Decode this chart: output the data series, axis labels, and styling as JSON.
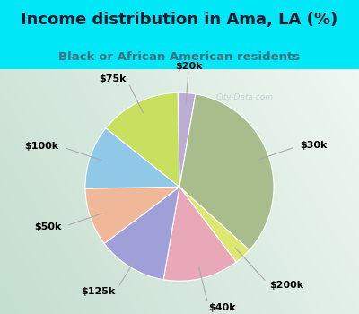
{
  "title": "Income distribution in Ama, LA (%)",
  "subtitle": "Black or African American residents",
  "labels": [
    "$20k",
    "$30k",
    "$200k",
    "$40k",
    "$125k",
    "$50k",
    "$100k",
    "$75k"
  ],
  "sizes": [
    3.0,
    34.0,
    3.0,
    13.0,
    12.0,
    10.0,
    11.0,
    14.0
  ],
  "colors": [
    "#bbadd4",
    "#a8bc8c",
    "#dde870",
    "#e8a8b8",
    "#a0a0d8",
    "#f0b898",
    "#90c8e8",
    "#c8e060"
  ],
  "bg_cyan": "#00e8f8",
  "bg_chart_light": "#e8f5f0",
  "title_color": "#1a1a2e",
  "subtitle_color": "#407080",
  "watermark": "City-Data.com",
  "startangle": 91,
  "label_fontsize": 8,
  "title_fontsize": 13,
  "subtitle_fontsize": 9.5,
  "label_radii": [
    1.28,
    1.35,
    1.42,
    1.32,
    1.3,
    1.32,
    1.35,
    1.28
  ]
}
